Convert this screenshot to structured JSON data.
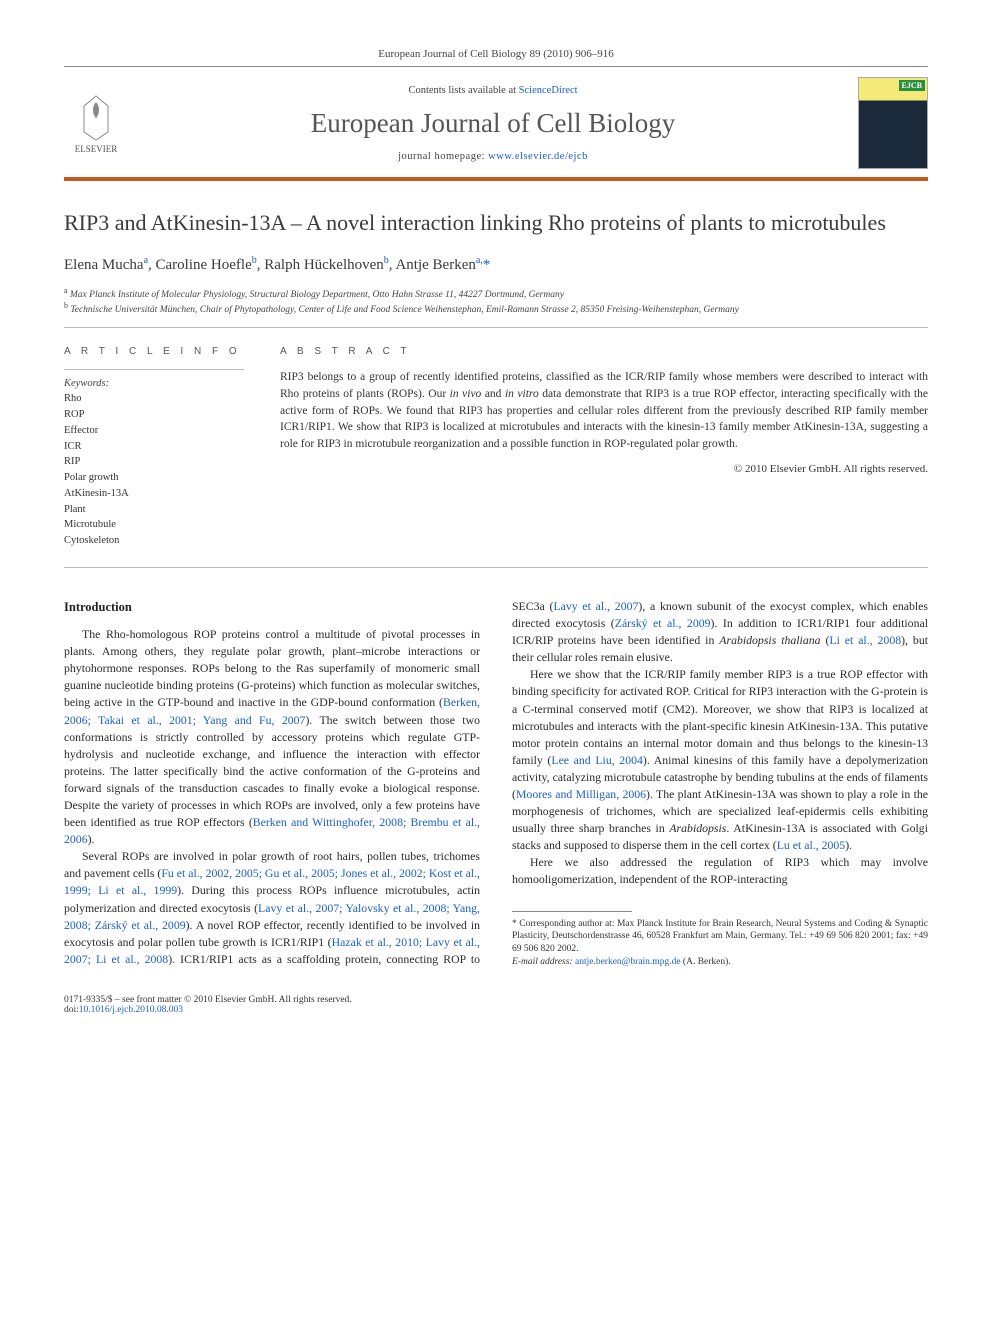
{
  "header": {
    "journal_ref": "European Journal of Cell Biology 89 (2010) 906–916",
    "contents_prefix": "Contents lists available at ",
    "contents_link": "ScienceDirect",
    "journal_name": "European Journal of Cell Biology",
    "homepage_prefix": "journal homepage: ",
    "homepage_url": "www.elsevier.de/ejcb",
    "publisher_name": "ELSEVIER",
    "cover_badge": "EJCB"
  },
  "article": {
    "title": "RIP3 and AtKinesin-13A – A novel interaction linking Rho proteins of plants to microtubules",
    "authors_html": "Elena Mucha<sup>a</sup>, Caroline Hoefle<sup>b</sup>, Ralph Hückelhoven<sup>b</sup>, Antje Berken<sup>a,</sup><span class='sup-star'>*</span>",
    "affiliations": {
      "a": "Max Planck Institute of Molecular Physiology, Structural Biology Department, Otto Hahn Strasse 11, 44227 Dortmund, Germany",
      "b": "Technische Universität München, Chair of Phytopathology, Center of Life and Food Science Weihenstephan, Emil-Ramann Strasse 2, 85350 Freising-Weihenstephan, Germany"
    }
  },
  "article_info": {
    "heading": "A R T I C L E   I N F O",
    "keywords_label": "Keywords:",
    "keywords": [
      "Rho",
      "ROP",
      "Effector",
      "ICR",
      "RIP",
      "Polar growth",
      "AtKinesin-13A",
      "Plant",
      "Microtubule",
      "Cytoskeleton"
    ]
  },
  "abstract": {
    "heading": "A B S T R A C T",
    "text": "RIP3 belongs to a group of recently identified proteins, classified as the ICR/RIP family whose members were described to interact with Rho proteins of plants (ROPs). Our in vivo and in vitro data demonstrate that RIP3 is a true ROP effector, interacting specifically with the active form of ROPs. We found that RIP3 has properties and cellular roles different from the previously described RIP family member ICR1/RIP1. We show that RIP3 is localized at microtubules and interacts with the kinesin-13 family member AtKinesin-13A, suggesting a role for RIP3 in microtubule reorganization and a possible function in ROP-regulated polar growth.",
    "copyright": "© 2010 Elsevier GmbH. All rights reserved."
  },
  "body": {
    "intro_heading": "Introduction",
    "p1": "The Rho-homologous ROP proteins control a multitude of pivotal processes in plants. Among others, they regulate polar growth, plant–microbe interactions or phytohormone responses. ROPs belong to the Ras superfamily of monomeric small guanine nucleotide binding proteins (G-proteins) which function as molecular switches, being active in the GTP-bound and inactive in the GDP-bound conformation (",
    "p1_ref1": "Berken, 2006; Takai et al., 2001; Yang and Fu, 2007",
    "p1b": "). The switch between those two conformations is strictly controlled by accessory proteins which regulate GTP-hydrolysis and nucleotide exchange, and influence the interaction with effector proteins. The latter specifically bind the active conformation of the G-proteins and forward signals of the transduction cascades to finally evoke a biological response. Despite the variety of processes in which ROPs are involved, only a few proteins have been identified as true ROP effectors (",
    "p1_ref2": "Berken and Wittinghofer, 2008; Brembu et al., 2006",
    "p1c": ").",
    "p2": "Several ROPs are involved in polar growth of root hairs, pollen tubes, trichomes and pavement cells (",
    "p2_ref1": "Fu et al., 2002, 2005; Gu et al., 2005; Jones et al., 2002; Kost et al., 1999; Li et al., 1999",
    "p2b": "). During this process ROPs influence microtubules, actin polymerization and directed exocytosis (",
    "p2_ref2": "Lavy et al., 2007; Yalovsky et al., 2008; Yang, 2008; Zárský et al., 2009",
    "p2c": "). A novel ROP effector, recently identified to be involved in exocytosis and polar pollen tube growth is ICR1/RIP1 (",
    "p2_ref3": "Hazak et al., 2010; Lavy et al., 2007; Li et al., 2008",
    "p2d": "). ICR1/RIP1 acts as a scaffolding protein, connecting ROP to SEC3a (",
    "p2_ref4": "Lavy et al., 2007",
    "p2e": "), a known subunit of the exocyst complex, which enables directed exocytosis (",
    "p2_ref5": "Zárský et al., 2009",
    "p2f": "). In addition to ICR1/RIP1 four additional ICR/RIP proteins have been identified in ",
    "p2_italic": "Arabidopsis thaliana",
    "p2g": " (",
    "p2_ref6": "Li et al., 2008",
    "p2h": "), but their cellular roles remain elusive.",
    "p3": "Here we show that the ICR/RIP family member RIP3 is a true ROP effector with binding specificity for activated ROP. Critical for RIP3 interaction with the G-protein is a C-terminal conserved motif (CM2). Moreover, we show that RIP3 is localized at microtubules and interacts with the plant-specific kinesin AtKinesin-13A. This putative motor protein contains an internal motor domain and thus belongs to the kinesin-13 family (",
    "p3_ref1": "Lee and Liu, 2004",
    "p3b": "). Animal kinesins of this family have a depolymerization activity, catalyzing microtubule catastrophe by bending tubulins at the ends of filaments (",
    "p3_ref2": "Moores and Milligan, 2006",
    "p3c": "). The plant AtKinesin-13A was shown to play a role in the morphogenesis of trichomes, which are specialized leaf-epidermis cells exhibiting usually three sharp branches in ",
    "p3_italic": "Arabidopsis",
    "p3d": ". AtKinesin-13A is associated with Golgi stacks and supposed to disperse them in the cell cortex (",
    "p3_ref3": "Lu et al., 2005",
    "p3e": ").",
    "p4": "Here we also addressed the regulation of RIP3 which may involve homooligomerization, independent of the ROP-interacting"
  },
  "footnotes": {
    "corr_label": "* Corresponding author at: Max Planck Institute for Brain Research, Neural Systems and Coding & Synaptic Plasticity, Deutschordenstrasse 46, 60528 Frankfurt am Main, Germany. Tel.: +49 69 506 820 2001; fax: +49 69 506 820 2002.",
    "email_label": "E-mail address: ",
    "email": "antje.berken@brain.mpg.de",
    "email_suffix": " (A. Berken)."
  },
  "footer": {
    "issn_line": "0171-9335/$ – see front matter © 2010 Elsevier GmbH. All rights reserved.",
    "doi_prefix": "doi:",
    "doi": "10.1016/j.ejcb.2010.08.003"
  },
  "colors": {
    "link": "#1a5fc9",
    "accent_rule": "#c65b1f",
    "text": "#2a2a2a",
    "muted": "#555555"
  }
}
